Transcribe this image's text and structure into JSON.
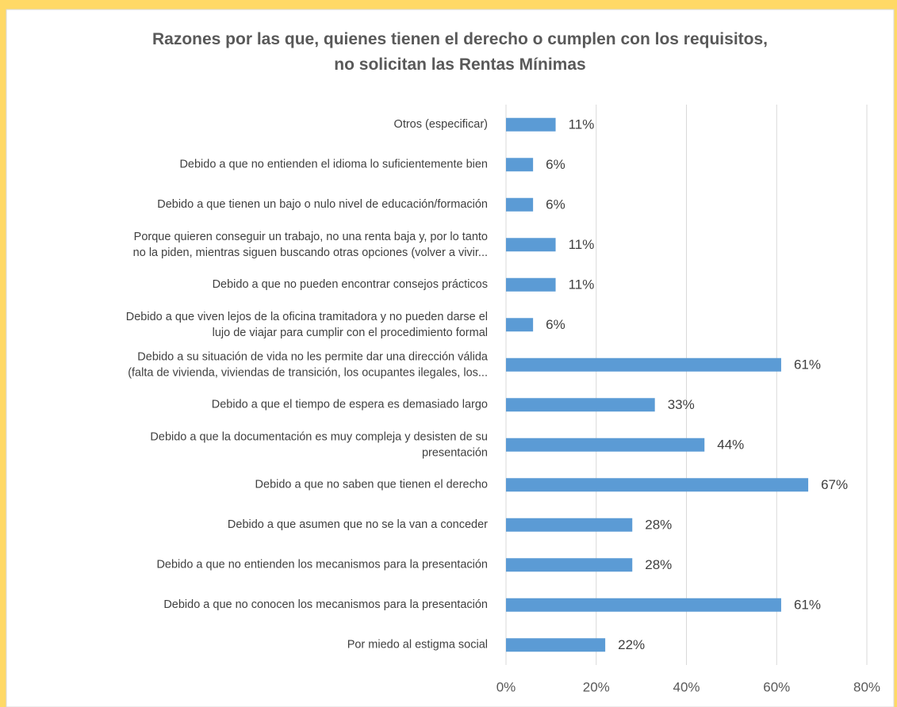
{
  "chart_data": {
    "type": "hbar",
    "title": "Razones por las que, quienes tienen el derecho o cumplen con los requisitos,\nno solicitan las Rentas Mínimas",
    "categories": [
      "Otros (especificar)",
      "Debido a que no entienden el idioma lo suficientemente bien",
      "Debido a que tienen un bajo o nulo nivel de educación/formación",
      "Porque quieren conseguir un trabajo, no una renta baja y, por lo tanto\nno la piden, mientras siguen  buscando otras opciones (volver a vivir...",
      "Debido a que no pueden encontrar consejos prácticos",
      "Debido a que viven lejos de la oficina tramitadora y no pueden darse el\nlujo de viajar para cumplir con el procedimiento formal",
      "Debido a su situación de vida no les permite dar una dirección válida\n(falta de vivienda, viviendas de transición, los ocupantes ilegales, los...",
      "Debido a que el tiempo de espera es demasiado largo",
      "Debido a que la documentación es muy compleja y desisten de su\npresentación",
      "Debido a que no saben que tienen el derecho",
      "Debido a que asumen que no se la van a conceder",
      "Debido a que no entienden los mecanismos para la presentación",
      "Debido a que no conocen los mecanismos para la presentación",
      "Por miedo al estigma social"
    ],
    "values": [
      11,
      6,
      6,
      11,
      11,
      6,
      61,
      33,
      44,
      67,
      28,
      28,
      61,
      22
    ],
    "value_labels": [
      "11%",
      "6%",
      "6%",
      "11%",
      "11%",
      "6%",
      "61%",
      "33%",
      "44%",
      "67%",
      "28%",
      "28%",
      "61%",
      "22%"
    ],
    "color": "#5b9bd5",
    "xlim": [
      0,
      80
    ],
    "xticks": [
      {
        "value": 0,
        "label": "0%"
      },
      {
        "value": 20,
        "label": "20%"
      },
      {
        "value": 40,
        "label": "40%"
      },
      {
        "value": 60,
        "label": "60%"
      },
      {
        "value": 80,
        "label": "80%"
      }
    ],
    "grid": true
  }
}
